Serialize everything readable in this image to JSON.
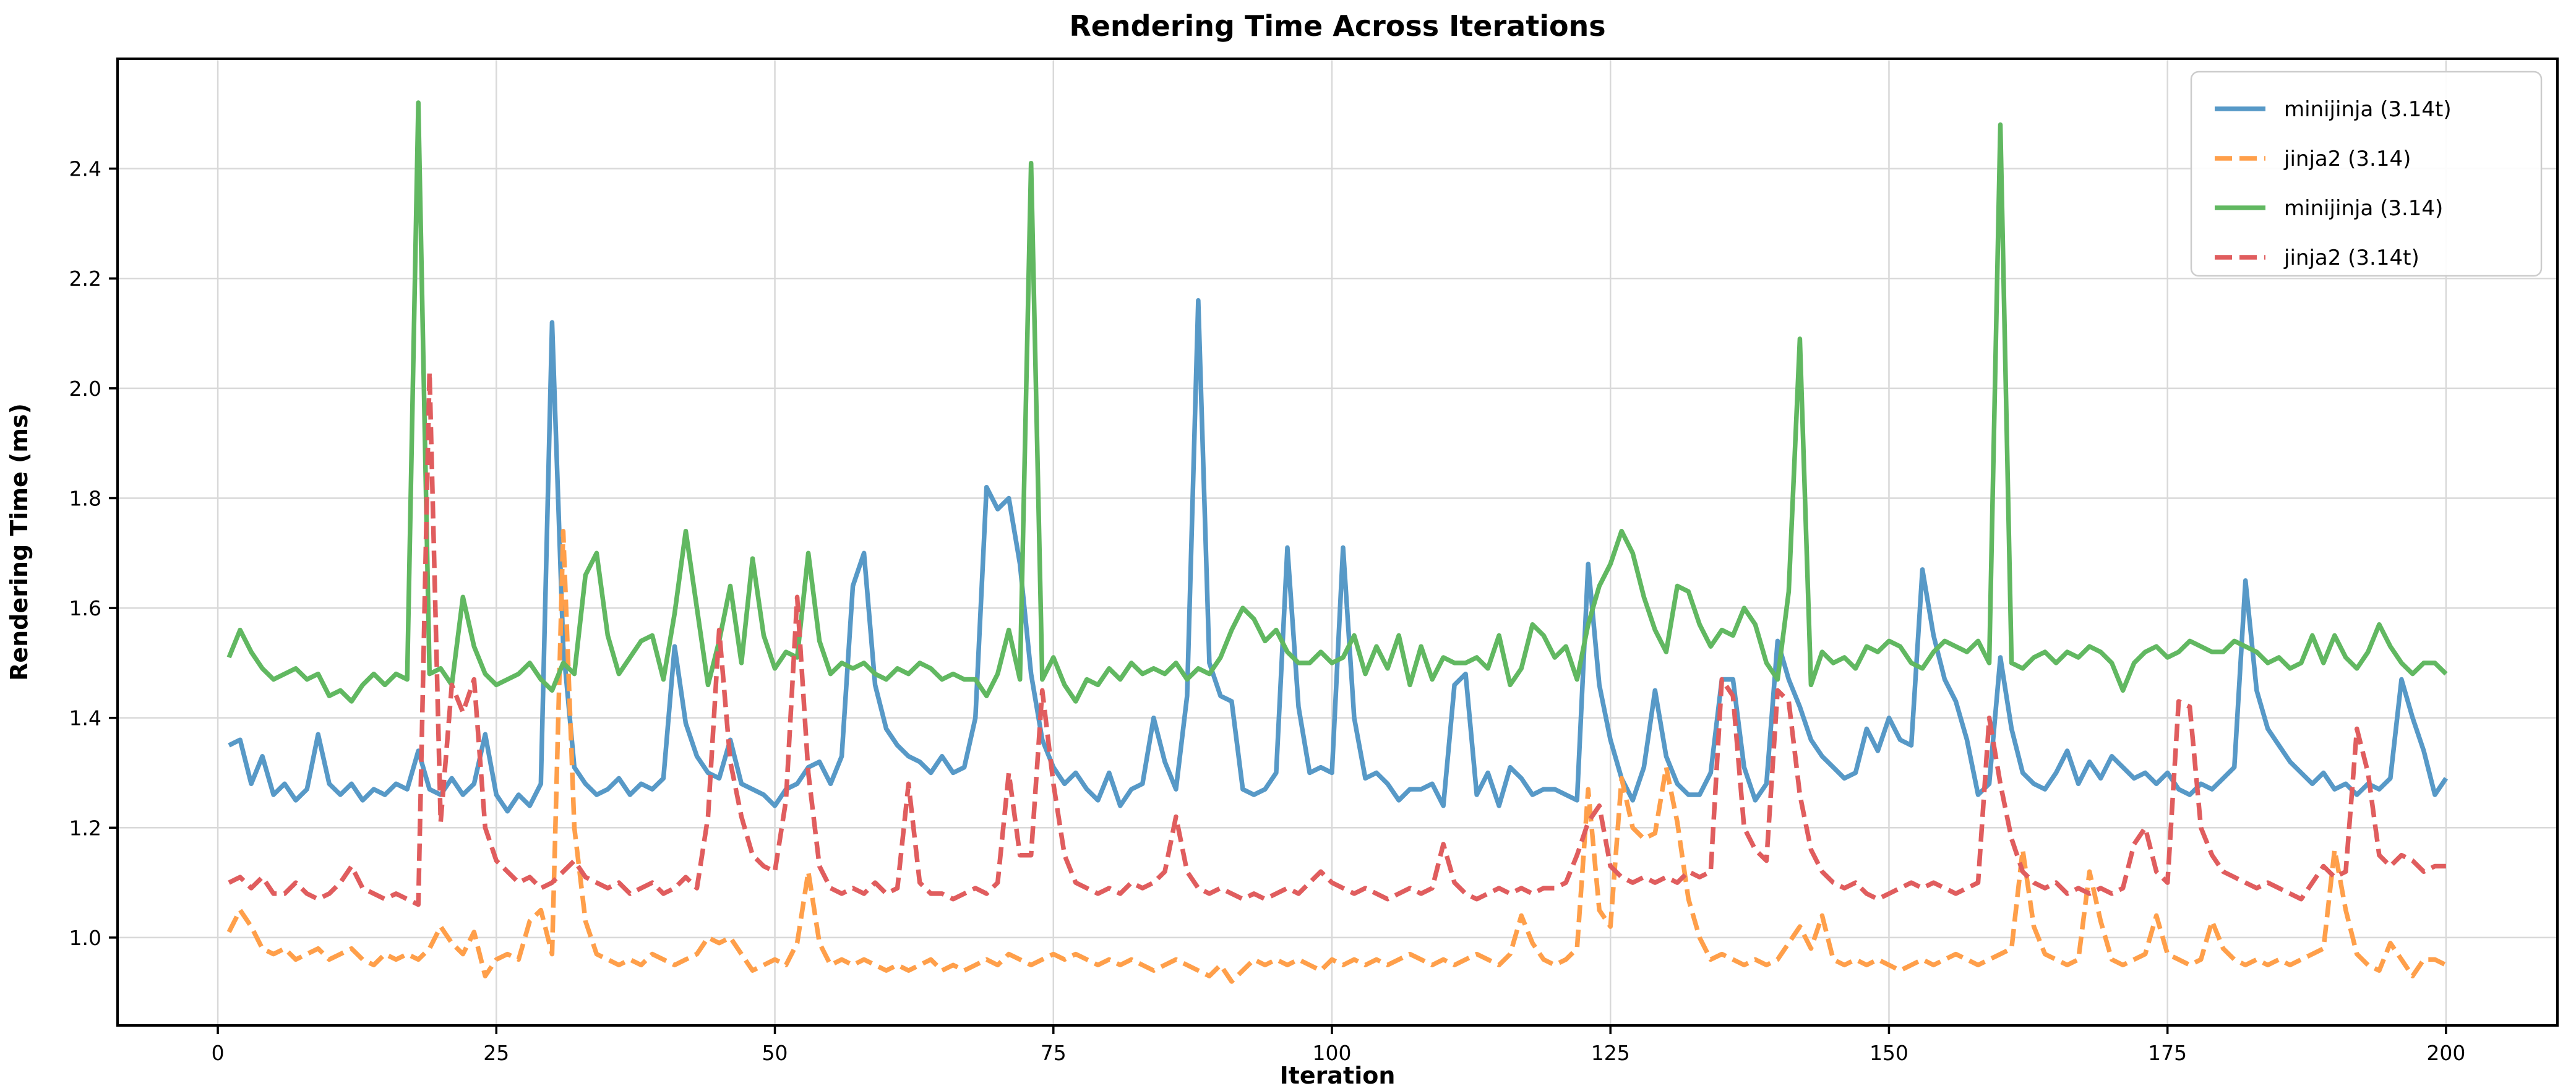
{
  "title": "Rendering Time Across Iterations",
  "chart_data": {
    "type": "line",
    "title": "Rendering Time Across Iterations",
    "xlabel": "Iteration",
    "ylabel": "Rendering Time (ms)",
    "xlim": [
      -9,
      210
    ],
    "ylim": [
      0.84,
      2.6
    ],
    "xticks": [
      0,
      25,
      50,
      75,
      100,
      125,
      150,
      175,
      200
    ],
    "yticks": [
      1.0,
      1.2,
      1.4,
      1.6,
      1.8,
      2.0,
      2.2,
      2.4
    ],
    "grid": true,
    "grid_color": "#d9d9d9",
    "background": "#ffffff",
    "spine_color": "#000000",
    "legend_position": "upper right",
    "x_start": 1,
    "series": [
      {
        "name": "minijinja (3.14t)",
        "color": "#5799c7",
        "style": "solid",
        "values": [
          1.35,
          1.36,
          1.28,
          1.33,
          1.26,
          1.28,
          1.25,
          1.27,
          1.37,
          1.28,
          1.26,
          1.28,
          1.25,
          1.27,
          1.26,
          1.28,
          1.27,
          1.34,
          1.27,
          1.26,
          1.29,
          1.26,
          1.28,
          1.37,
          1.26,
          1.23,
          1.26,
          1.24,
          1.28,
          2.12,
          1.53,
          1.31,
          1.28,
          1.26,
          1.27,
          1.29,
          1.26,
          1.28,
          1.27,
          1.29,
          1.53,
          1.39,
          1.33,
          1.3,
          1.29,
          1.36,
          1.28,
          1.27,
          1.26,
          1.24,
          1.27,
          1.28,
          1.31,
          1.32,
          1.28,
          1.33,
          1.64,
          1.7,
          1.46,
          1.38,
          1.35,
          1.33,
          1.32,
          1.3,
          1.33,
          1.3,
          1.31,
          1.4,
          1.82,
          1.78,
          1.8,
          1.68,
          1.48,
          1.36,
          1.31,
          1.28,
          1.3,
          1.27,
          1.25,
          1.3,
          1.24,
          1.27,
          1.28,
          1.4,
          1.32,
          1.27,
          1.44,
          2.16,
          1.5,
          1.44,
          1.43,
          1.27,
          1.26,
          1.27,
          1.3,
          1.71,
          1.42,
          1.3,
          1.31,
          1.3,
          1.71,
          1.4,
          1.29,
          1.3,
          1.28,
          1.25,
          1.27,
          1.27,
          1.28,
          1.24,
          1.46,
          1.48,
          1.26,
          1.3,
          1.24,
          1.31,
          1.29,
          1.26,
          1.27,
          1.27,
          1.26,
          1.25,
          1.68,
          1.46,
          1.36,
          1.29,
          1.25,
          1.31,
          1.45,
          1.33,
          1.28,
          1.26,
          1.26,
          1.3,
          1.47,
          1.47,
          1.31,
          1.25,
          1.28,
          1.54,
          1.47,
          1.42,
          1.36,
          1.33,
          1.31,
          1.29,
          1.3,
          1.38,
          1.34,
          1.4,
          1.36,
          1.35,
          1.67,
          1.55,
          1.47,
          1.43,
          1.36,
          1.26,
          1.28,
          1.51,
          1.38,
          1.3,
          1.28,
          1.27,
          1.3,
          1.34,
          1.28,
          1.32,
          1.29,
          1.33,
          1.31,
          1.29,
          1.3,
          1.28,
          1.3,
          1.27,
          1.26,
          1.28,
          1.27,
          1.29,
          1.31,
          1.65,
          1.45,
          1.38,
          1.35,
          1.32,
          1.3,
          1.28,
          1.3,
          1.27,
          1.28,
          1.26,
          1.28,
          1.27,
          1.29,
          1.47,
          1.4,
          1.34,
          1.26,
          1.29
        ]
      },
      {
        "name": "jinja2 (3.14)",
        "color": "#ff9f4a",
        "style": "dashed",
        "values": [
          1.01,
          1.05,
          1.02,
          0.98,
          0.97,
          0.98,
          0.96,
          0.97,
          0.98,
          0.96,
          0.97,
          0.98,
          0.96,
          0.95,
          0.97,
          0.96,
          0.97,
          0.96,
          0.98,
          1.02,
          0.99,
          0.97,
          1.01,
          0.93,
          0.96,
          0.97,
          0.96,
          1.03,
          1.05,
          0.97,
          1.74,
          1.2,
          1.03,
          0.97,
          0.96,
          0.95,
          0.96,
          0.95,
          0.97,
          0.96,
          0.95,
          0.96,
          0.97,
          1.0,
          0.99,
          1.0,
          0.97,
          0.94,
          0.95,
          0.96,
          0.95,
          0.99,
          1.12,
          0.99,
          0.95,
          0.96,
          0.95,
          0.96,
          0.95,
          0.94,
          0.95,
          0.94,
          0.95,
          0.96,
          0.94,
          0.95,
          0.94,
          0.95,
          0.96,
          0.95,
          0.97,
          0.96,
          0.95,
          0.96,
          0.97,
          0.96,
          0.97,
          0.96,
          0.95,
          0.96,
          0.95,
          0.96,
          0.95,
          0.94,
          0.95,
          0.96,
          0.95,
          0.94,
          0.93,
          0.95,
          0.92,
          0.94,
          0.96,
          0.95,
          0.96,
          0.95,
          0.96,
          0.95,
          0.94,
          0.96,
          0.95,
          0.96,
          0.95,
          0.96,
          0.95,
          0.96,
          0.97,
          0.96,
          0.95,
          0.96,
          0.95,
          0.96,
          0.97,
          0.96,
          0.95,
          0.97,
          1.04,
          0.99,
          0.96,
          0.95,
          0.96,
          0.98,
          1.27,
          1.05,
          1.02,
          1.29,
          1.2,
          1.18,
          1.19,
          1.31,
          1.21,
          1.07,
          1.0,
          0.96,
          0.97,
          0.96,
          0.95,
          0.96,
          0.95,
          0.96,
          0.99,
          1.02,
          0.98,
          1.04,
          0.96,
          0.95,
          0.96,
          0.95,
          0.96,
          0.95,
          0.94,
          0.95,
          0.96,
          0.95,
          0.96,
          0.97,
          0.96,
          0.95,
          0.96,
          0.97,
          0.98,
          1.16,
          1.02,
          0.97,
          0.96,
          0.95,
          0.96,
          1.12,
          1.03,
          0.96,
          0.95,
          0.96,
          0.97,
          1.04,
          0.97,
          0.96,
          0.95,
          0.96,
          1.03,
          0.98,
          0.96,
          0.95,
          0.96,
          0.95,
          0.96,
          0.95,
          0.96,
          0.97,
          0.98,
          1.16,
          1.05,
          0.97,
          0.95,
          0.94,
          0.99,
          0.96,
          0.93,
          0.96,
          0.96,
          0.95
        ]
      },
      {
        "name": "minijinja (3.14)",
        "color": "#61b861",
        "style": "solid",
        "values": [
          1.51,
          1.56,
          1.52,
          1.49,
          1.47,
          1.48,
          1.49,
          1.47,
          1.48,
          1.44,
          1.45,
          1.43,
          1.46,
          1.48,
          1.46,
          1.48,
          1.47,
          2.52,
          1.48,
          1.49,
          1.46,
          1.62,
          1.53,
          1.48,
          1.46,
          1.47,
          1.48,
          1.5,
          1.47,
          1.45,
          1.5,
          1.48,
          1.66,
          1.7,
          1.55,
          1.48,
          1.51,
          1.54,
          1.55,
          1.47,
          1.59,
          1.74,
          1.6,
          1.46,
          1.54,
          1.64,
          1.5,
          1.69,
          1.55,
          1.49,
          1.52,
          1.51,
          1.7,
          1.54,
          1.48,
          1.5,
          1.49,
          1.5,
          1.48,
          1.47,
          1.49,
          1.48,
          1.5,
          1.49,
          1.47,
          1.48,
          1.47,
          1.47,
          1.44,
          1.48,
          1.56,
          1.47,
          2.41,
          1.47,
          1.51,
          1.46,
          1.43,
          1.47,
          1.46,
          1.49,
          1.47,
          1.5,
          1.48,
          1.49,
          1.48,
          1.5,
          1.47,
          1.49,
          1.48,
          1.51,
          1.56,
          1.6,
          1.58,
          1.54,
          1.56,
          1.52,
          1.5,
          1.5,
          1.52,
          1.5,
          1.51,
          1.55,
          1.48,
          1.53,
          1.49,
          1.55,
          1.46,
          1.53,
          1.47,
          1.51,
          1.5,
          1.5,
          1.51,
          1.49,
          1.55,
          1.46,
          1.49,
          1.57,
          1.55,
          1.51,
          1.53,
          1.47,
          1.57,
          1.64,
          1.68,
          1.74,
          1.7,
          1.62,
          1.56,
          1.52,
          1.64,
          1.63,
          1.57,
          1.53,
          1.56,
          1.55,
          1.6,
          1.57,
          1.5,
          1.47,
          1.63,
          2.09,
          1.46,
          1.52,
          1.5,
          1.51,
          1.49,
          1.53,
          1.52,
          1.54,
          1.53,
          1.5,
          1.49,
          1.52,
          1.54,
          1.53,
          1.52,
          1.54,
          1.5,
          2.48,
          1.5,
          1.49,
          1.51,
          1.52,
          1.5,
          1.52,
          1.51,
          1.53,
          1.52,
          1.5,
          1.45,
          1.5,
          1.52,
          1.53,
          1.51,
          1.52,
          1.54,
          1.53,
          1.52,
          1.52,
          1.54,
          1.53,
          1.52,
          1.5,
          1.51,
          1.49,
          1.5,
          1.55,
          1.5,
          1.55,
          1.51,
          1.49,
          1.52,
          1.57,
          1.53,
          1.5,
          1.48,
          1.5,
          1.5,
          1.48
        ]
      },
      {
        "name": "jinja2 (3.14t)",
        "color": "#e05d5e",
        "style": "dashed",
        "values": [
          1.1,
          1.11,
          1.09,
          1.11,
          1.08,
          1.08,
          1.1,
          1.08,
          1.07,
          1.08,
          1.1,
          1.13,
          1.09,
          1.08,
          1.07,
          1.08,
          1.07,
          1.06,
          2.03,
          1.21,
          1.46,
          1.41,
          1.47,
          1.2,
          1.14,
          1.12,
          1.1,
          1.11,
          1.09,
          1.1,
          1.12,
          1.14,
          1.11,
          1.1,
          1.09,
          1.1,
          1.08,
          1.09,
          1.1,
          1.08,
          1.09,
          1.11,
          1.09,
          1.22,
          1.56,
          1.32,
          1.22,
          1.15,
          1.13,
          1.12,
          1.25,
          1.62,
          1.3,
          1.13,
          1.09,
          1.08,
          1.09,
          1.08,
          1.1,
          1.08,
          1.09,
          1.28,
          1.1,
          1.08,
          1.08,
          1.07,
          1.08,
          1.09,
          1.08,
          1.1,
          1.3,
          1.15,
          1.15,
          1.45,
          1.28,
          1.15,
          1.1,
          1.09,
          1.08,
          1.09,
          1.08,
          1.1,
          1.09,
          1.1,
          1.12,
          1.22,
          1.12,
          1.09,
          1.08,
          1.09,
          1.08,
          1.07,
          1.08,
          1.07,
          1.08,
          1.09,
          1.08,
          1.1,
          1.12,
          1.1,
          1.09,
          1.08,
          1.09,
          1.08,
          1.07,
          1.08,
          1.09,
          1.08,
          1.09,
          1.17,
          1.1,
          1.08,
          1.07,
          1.08,
          1.09,
          1.08,
          1.09,
          1.08,
          1.09,
          1.09,
          1.1,
          1.15,
          1.21,
          1.24,
          1.13,
          1.11,
          1.1,
          1.11,
          1.1,
          1.11,
          1.1,
          1.12,
          1.11,
          1.12,
          1.47,
          1.44,
          1.2,
          1.16,
          1.14,
          1.45,
          1.43,
          1.26,
          1.16,
          1.12,
          1.1,
          1.09,
          1.1,
          1.08,
          1.07,
          1.08,
          1.09,
          1.1,
          1.09,
          1.1,
          1.09,
          1.08,
          1.09,
          1.1,
          1.4,
          1.28,
          1.18,
          1.12,
          1.1,
          1.09,
          1.1,
          1.08,
          1.09,
          1.08,
          1.09,
          1.08,
          1.09,
          1.17,
          1.2,
          1.12,
          1.1,
          1.43,
          1.42,
          1.2,
          1.15,
          1.12,
          1.11,
          1.1,
          1.09,
          1.1,
          1.09,
          1.08,
          1.07,
          1.1,
          1.13,
          1.11,
          1.12,
          1.38,
          1.3,
          1.15,
          1.13,
          1.15,
          1.14,
          1.12,
          1.13,
          1.13
        ]
      }
    ]
  }
}
